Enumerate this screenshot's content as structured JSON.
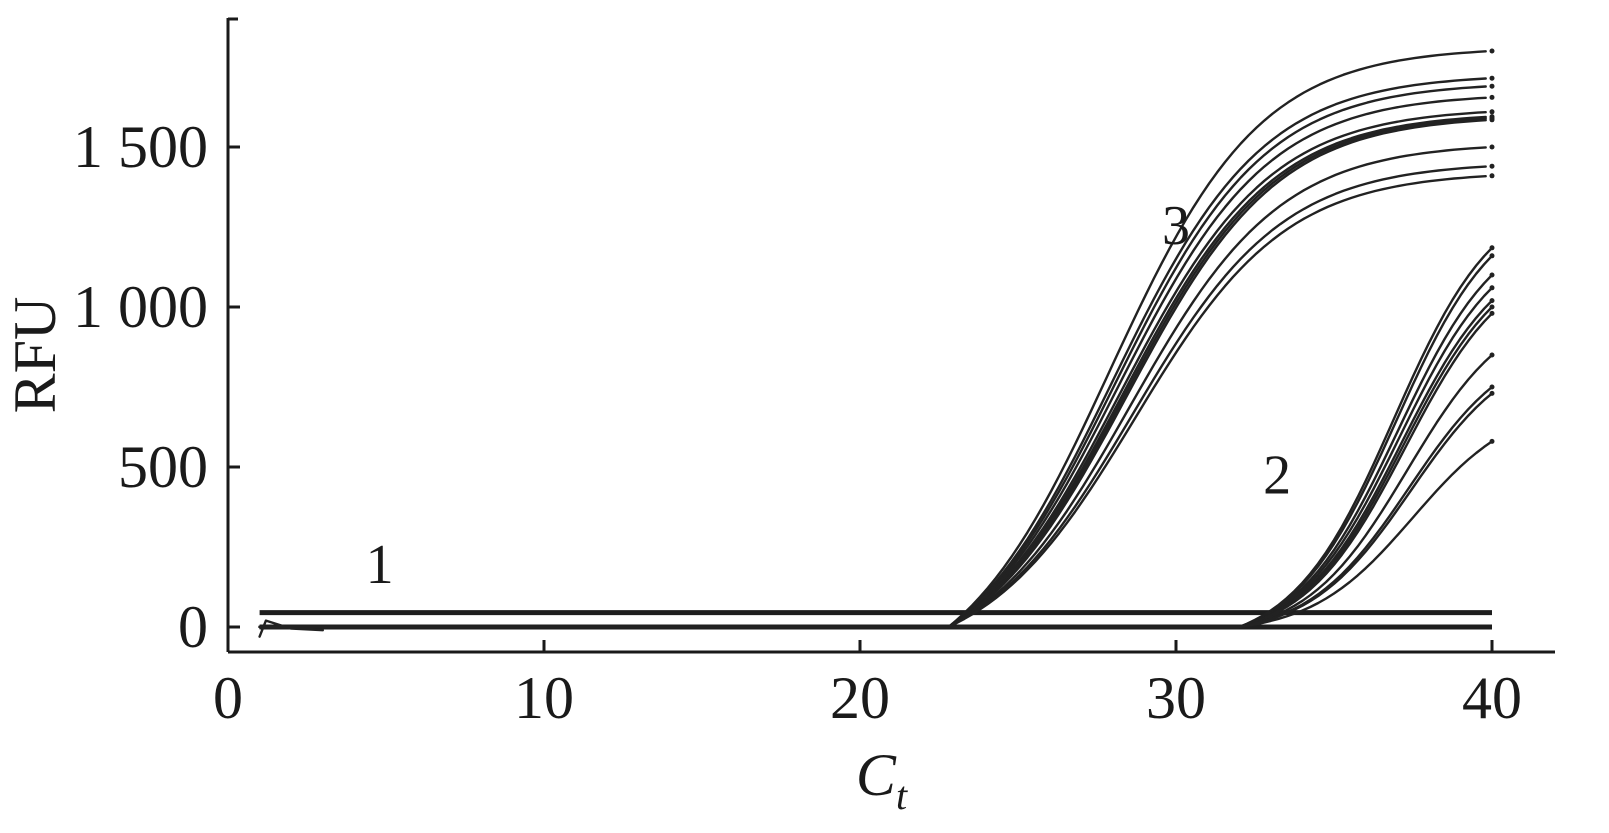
{
  "chart_data": {
    "type": "line",
    "title": "",
    "xlabel": "C",
    "xlabel_sub": "t",
    "ylabel": "RFU",
    "xlim": [
      0,
      42
    ],
    "ylim": [
      -80,
      1900
    ],
    "x_ticks": [
      0,
      10,
      20,
      30,
      40
    ],
    "y_ticks": [
      0,
      500,
      1000,
      1500
    ],
    "x_tick_labels": [
      "0",
      "10",
      "20",
      "30",
      "40"
    ],
    "y_tick_labels": [
      "0",
      "500",
      "1 000",
      "1 500"
    ],
    "grid": false,
    "legend": "none",
    "annotations": [
      {
        "text": "1",
        "x": 4.8,
        "y": 200
      },
      {
        "text": "2",
        "x": 33.2,
        "y": 480
      },
      {
        "text": "3",
        "x": 30.0,
        "y": 1260
      }
    ],
    "group_1_baselines": {
      "x_range": [
        1,
        40
      ],
      "levels": [
        45,
        0
      ],
      "count": 2
    },
    "group_3_curves": {
      "x_start": 1,
      "x_end": 40,
      "onset": 22.8,
      "midpoint": 28.3,
      "steepness": 0.42,
      "plateaus": [
        1900,
        1810,
        1780,
        1740,
        1700,
        1680,
        1670,
        1660,
        1580,
        1530,
        1490
      ],
      "end_values_at_40": [
        1800,
        1715,
        1690,
        1655,
        1610,
        1595,
        1590,
        1585,
        1500,
        1440,
        1410
      ]
    },
    "group_2_curves": {
      "x_start": 1,
      "x_end": 40,
      "onset": 32.0,
      "midpoint": 37.2,
      "steepness": 0.62,
      "end_values_at_40": [
        1185,
        1160,
        1100,
        1060,
        1020,
        1000,
        980,
        850,
        750,
        730,
        580
      ]
    },
    "colors": {
      "line": "#222222",
      "axis": "#1a1a1a",
      "background": "#ffffff"
    }
  }
}
